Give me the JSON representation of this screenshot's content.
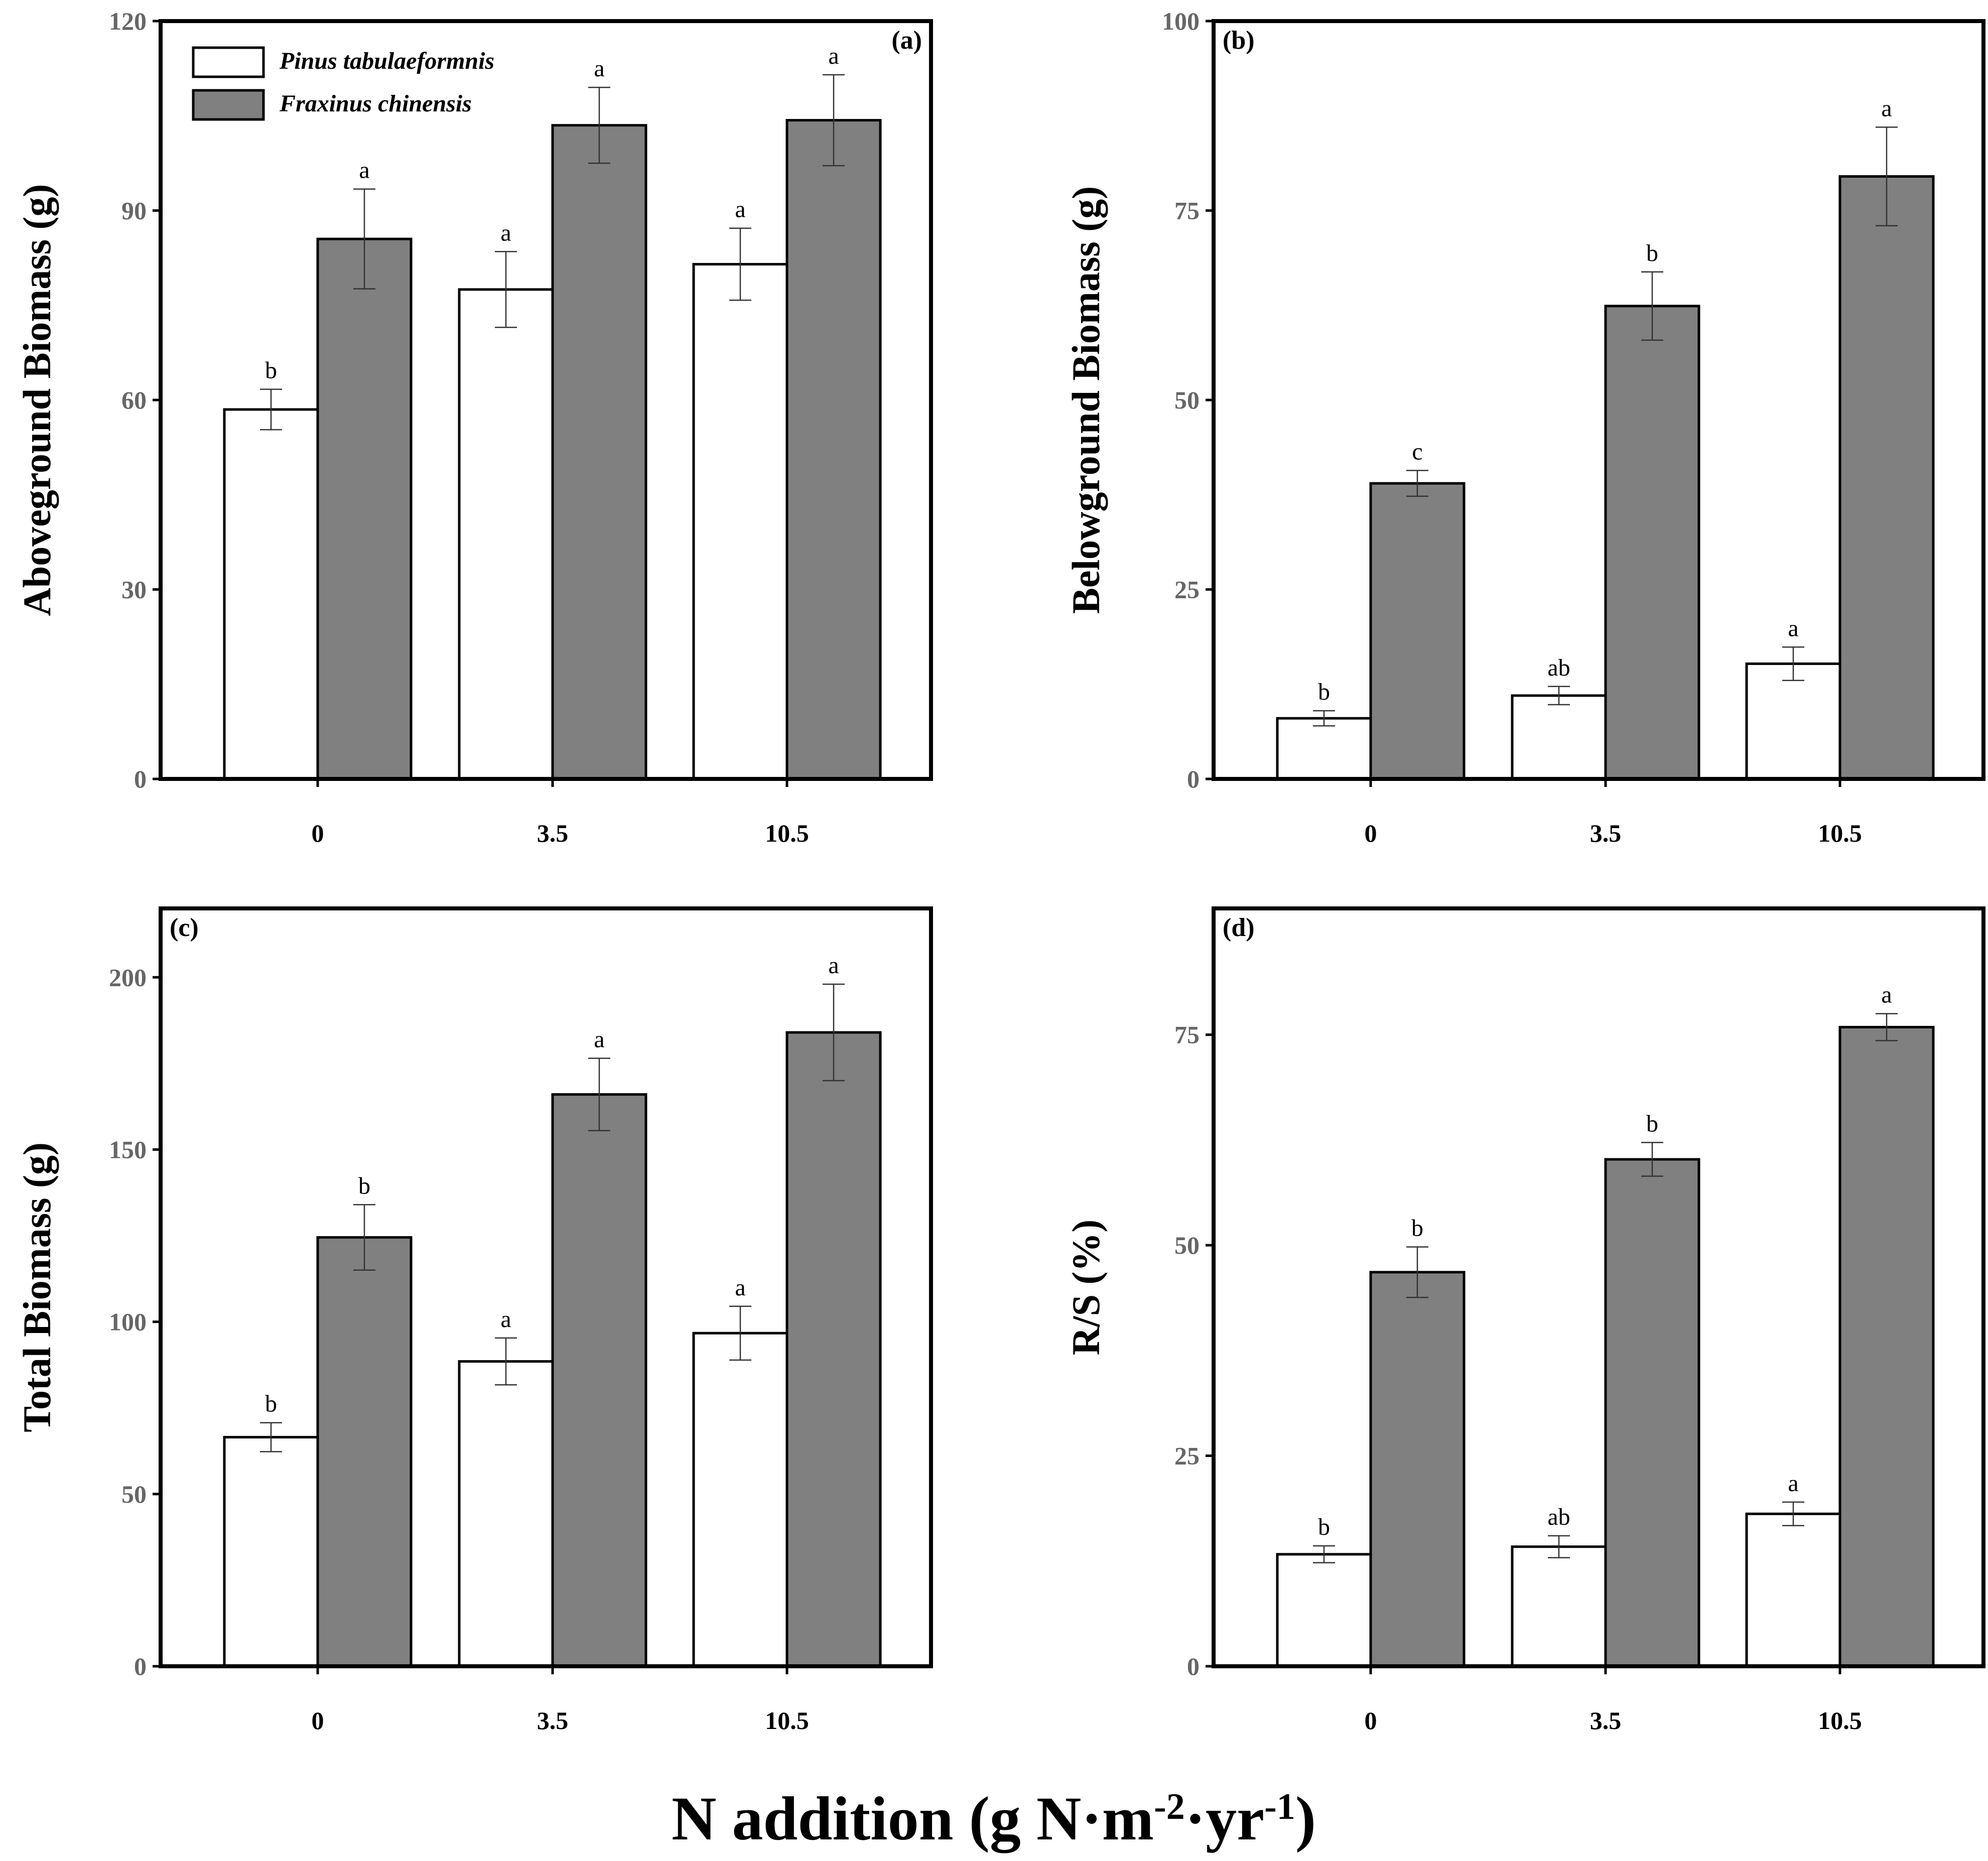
{
  "figure_xlabel": {
    "prefix": "N addition (g N·m",
    "sup1": "-2",
    "middle": "·yr",
    "sup2": "-1",
    "suffix": ")"
  },
  "legend": {
    "series1": "Pinus tabulaeformnis",
    "series2": "Fraxinus chinensis"
  },
  "colors": {
    "series1": "#ffffff",
    "series2": "#808080",
    "axis": "#000000",
    "tick_label": "#666666"
  },
  "chart_data": [
    {
      "type": "bar",
      "panel": "(a)",
      "ylabel": "Aboveground Biomass (g)",
      "categories": [
        "0",
        "3.5",
        "10.5"
      ],
      "ylim": [
        0,
        120
      ],
      "yticks": [
        0,
        30,
        60,
        90,
        120
      ],
      "series": [
        {
          "name": "Pinus tabulaeformnis",
          "values": [
            58.5,
            77.5,
            81.5
          ],
          "errors": [
            3.2,
            6.0,
            5.7
          ],
          "labels": [
            "b",
            "a",
            "a"
          ]
        },
        {
          "name": "Fraxinus chinensis",
          "values": [
            85.5,
            103.5,
            104.3
          ],
          "errors": [
            7.9,
            6.0,
            7.2
          ],
          "labels": [
            "a",
            "a",
            "a"
          ]
        }
      ]
    },
    {
      "type": "bar",
      "panel": "(b)",
      "ylabel": "Belowground Biomass (g)",
      "categories": [
        "0",
        "3.5",
        "10.5"
      ],
      "ylim": [
        0,
        100
      ],
      "yticks": [
        0,
        25,
        50,
        75,
        100
      ],
      "series": [
        {
          "name": "Pinus tabulaeformnis",
          "values": [
            8.0,
            11.0,
            15.2
          ],
          "errors": [
            1.0,
            1.2,
            2.2
          ],
          "labels": [
            "b",
            "ab",
            "a"
          ]
        },
        {
          "name": "Fraxinus chinensis",
          "values": [
            39.0,
            62.4,
            79.5
          ],
          "errors": [
            1.7,
            4.5,
            6.5
          ],
          "labels": [
            "c",
            "b",
            "a"
          ]
        }
      ]
    },
    {
      "type": "bar",
      "panel": "(c)",
      "ylabel": "Total Biomass (g)",
      "categories": [
        "0",
        "3.5",
        "10.5"
      ],
      "ylim": [
        0,
        220
      ],
      "yticks": [
        0,
        50,
        100,
        150,
        200
      ],
      "series": [
        {
          "name": "Pinus tabulaeformnis",
          "values": [
            66.5,
            88.5,
            96.7
          ],
          "errors": [
            4.2,
            6.8,
            7.8
          ],
          "labels": [
            "b",
            "a",
            "a"
          ]
        },
        {
          "name": "Fraxinus chinensis",
          "values": [
            124.5,
            166.0,
            184.0
          ],
          "errors": [
            9.5,
            10.5,
            14.0
          ],
          "labels": [
            "b",
            "a",
            "a"
          ]
        }
      ]
    },
    {
      "type": "bar",
      "panel": "(d)",
      "ylabel": "R/S (%)",
      "categories": [
        "0",
        "3.5",
        "10.5"
      ],
      "ylim": [
        0,
        90
      ],
      "yticks": [
        0,
        25,
        50,
        75
      ],
      "series": [
        {
          "name": "Pinus tabulaeformnis",
          "values": [
            13.3,
            14.2,
            18.1
          ],
          "errors": [
            1.0,
            1.3,
            1.4
          ],
          "labels": [
            "b",
            "ab",
            "a"
          ]
        },
        {
          "name": "Fraxinus chinensis",
          "values": [
            46.8,
            60.2,
            75.9
          ],
          "errors": [
            3.0,
            2.0,
            1.6
          ],
          "labels": [
            "b",
            "b",
            "a"
          ]
        }
      ]
    }
  ]
}
